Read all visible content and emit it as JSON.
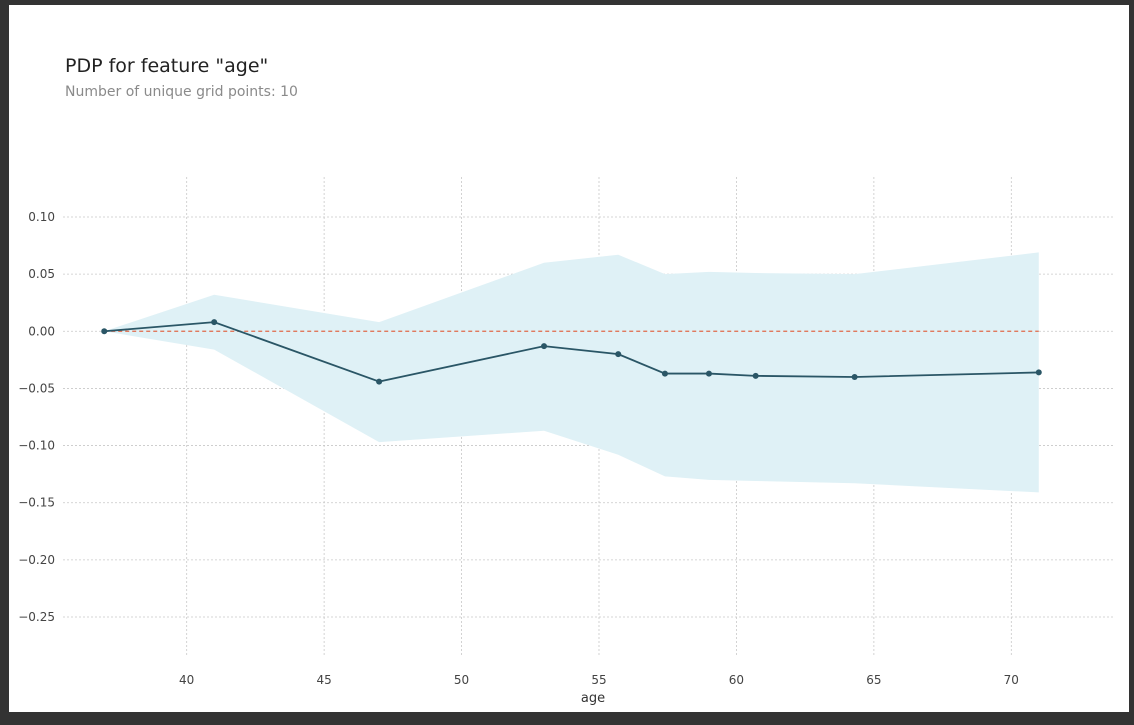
{
  "chart_data": {
    "type": "line",
    "title": "PDP for feature \"age\"",
    "subtitle": "Number of unique grid points: 10",
    "xlabel": "age",
    "ylabel": "",
    "x_ticks": [
      "40",
      "45",
      "50",
      "55",
      "60",
      "65",
      "70"
    ],
    "y_ticks": [
      "0.10",
      "0.05",
      "0.00",
      "−0.05",
      "−0.10",
      "−0.15",
      "−0.20",
      "−0.25"
    ],
    "xlim": [
      35.5,
      73.7
    ],
    "ylim": [
      -0.285,
      0.135
    ],
    "grid": true,
    "reference_line": 0,
    "x": [
      37,
      41,
      47,
      53,
      55.7,
      57.4,
      59,
      60.7,
      64.3,
      71
    ],
    "series": [
      {
        "values": [
          0.0,
          0.008,
          -0.044,
          -0.013,
          -0.02,
          -0.037,
          -0.037,
          -0.039,
          -0.04,
          -0.036
        ],
        "lower": [
          0.0,
          -0.016,
          -0.097,
          -0.087,
          -0.108,
          -0.127,
          -0.13,
          -0.131,
          -0.133,
          -0.141
        ],
        "upper": [
          0.0,
          0.032,
          0.008,
          0.06,
          0.067,
          0.05,
          0.052,
          0.051,
          0.05,
          0.069
        ]
      }
    ],
    "colors": {
      "line": "#2a5666",
      "band": "#dff1f6",
      "zero_line": "#e06a4a",
      "grid": "#c8c8c8"
    }
  }
}
